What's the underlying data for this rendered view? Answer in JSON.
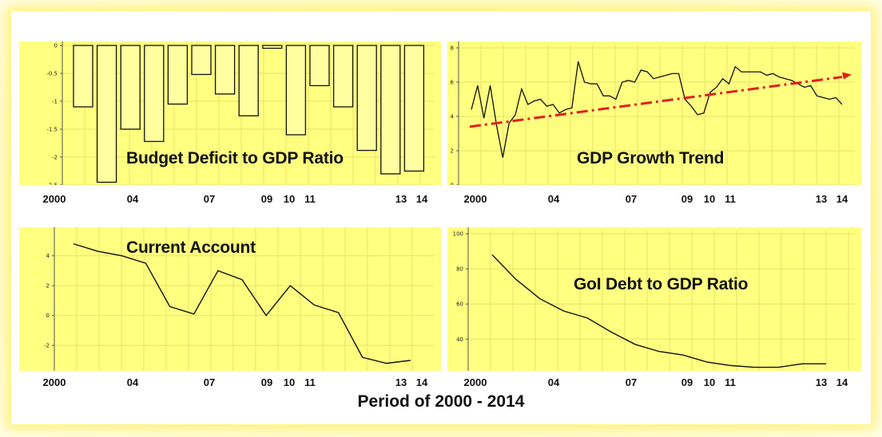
{
  "footer": "Period of 2000 - 2014",
  "chart_data": [
    {
      "id": "budget",
      "type": "bar",
      "title": "Budget Deficit to GDP Ratio",
      "xlabels": [
        "2000",
        "04",
        "07",
        "09",
        "10",
        "11",
        "13",
        "14"
      ],
      "yticks": [
        "0",
        "-0.5",
        "-1",
        "-1.5",
        "-2",
        "-2.5"
      ],
      "ylim": [
        -2.5,
        0
      ],
      "values": [
        -1.1,
        -2.45,
        -1.5,
        -1.72,
        -1.05,
        -0.52,
        -0.87,
        -1.26,
        -0.05,
        -1.6,
        -0.72,
        -1.1,
        -1.88,
        -2.3,
        -2.25
      ],
      "grid": true
    },
    {
      "id": "growth",
      "type": "line",
      "title": "GDP Growth Trend",
      "xlabels": [
        "2000",
        "04",
        "07",
        "09",
        "10",
        "11",
        "13",
        "14"
      ],
      "yticks": [
        "8",
        "6",
        "4",
        "2",
        "0"
      ],
      "ylim": [
        0,
        8
      ],
      "series": [
        {
          "values": [
            4.4,
            5.8,
            3.9,
            5.8,
            3.5,
            1.6,
            3.6,
            4.1,
            5.6,
            4.7,
            4.9,
            5.0,
            4.6,
            4.7,
            4.2,
            4.4,
            4.5,
            7.2,
            6.0,
            5.9,
            5.9,
            5.2,
            5.2,
            5.0,
            6.0,
            6.1,
            6.0,
            6.7,
            6.6,
            6.2,
            6.3,
            6.4,
            6.5,
            6.5,
            5.0,
            4.6,
            4.1,
            4.2,
            5.4,
            5.7,
            6.2,
            5.9,
            6.9,
            6.6,
            6.6,
            6.6,
            6.6,
            6.4,
            6.5,
            6.3,
            6.2,
            6.1,
            5.9,
            5.7,
            5.8,
            5.2,
            5.1,
            5.0,
            5.1,
            4.7
          ]
        },
        {
          "trend": [
            3.4,
            6.3
          ]
        }
      ],
      "grid": true
    },
    {
      "id": "current",
      "type": "line",
      "title": "Current Account",
      "xlabels": [
        "2000",
        "04",
        "07",
        "09",
        "10",
        "11",
        "13",
        "14"
      ],
      "yticks": [
        "4",
        "2",
        "0",
        "-2"
      ],
      "ylim": [
        -3.7,
        5.8
      ],
      "series": [
        {
          "values": [
            4.8,
            4.3,
            4.0,
            3.5,
            0.6,
            0.1,
            3.0,
            2.4,
            0.0,
            2.0,
            0.7,
            0.2,
            -2.8,
            -3.2,
            -3.0
          ]
        }
      ],
      "grid": true
    },
    {
      "id": "debt",
      "type": "line",
      "title": "GoI Debt to GDP Ratio",
      "xlabels": [
        "2000",
        "04",
        "07",
        "09",
        "10",
        "11",
        "13",
        "14"
      ],
      "yticks": [
        "100",
        "80",
        "60",
        "40"
      ],
      "ylim": [
        22,
        100
      ],
      "series": [
        {
          "values": [
            88,
            74,
            63,
            56,
            52,
            44,
            37,
            33,
            31,
            27,
            25,
            24,
            24,
            26,
            26
          ]
        }
      ],
      "grid": true
    }
  ]
}
